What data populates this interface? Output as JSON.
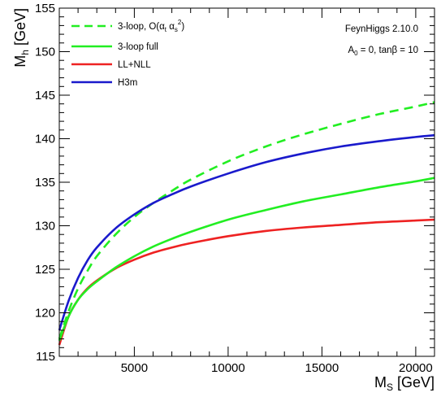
{
  "chart_data": {
    "type": "line",
    "xlabel_main": "M",
    "xlabel_sub": "S",
    "xlabel_unit": " [GeV]",
    "ylabel_main": "M",
    "ylabel_sub": "h",
    "ylabel_unit": " [GeV]",
    "xlim": [
      1000,
      21000
    ],
    "ylim": [
      115,
      155
    ],
    "x_ticks": [
      5000,
      10000,
      15000,
      20000
    ],
    "x_tick_labels": [
      "5000",
      "10000",
      "15000",
      "20000"
    ],
    "y_ticks": [
      115,
      120,
      125,
      130,
      135,
      140,
      145,
      150,
      155
    ],
    "y_tick_labels": [
      "115",
      "120",
      "125",
      "130",
      "135",
      "140",
      "145",
      "150",
      "155"
    ],
    "grid": false,
    "legend_position": "top-left",
    "annotations": {
      "line1": "FeynHiggs 2.10.0",
      "line2_a": "A",
      "line2_sub": "0",
      "line2_b": " = 0, tanβ = 10"
    },
    "series": [
      {
        "name": "3-loop, O(α_t α_s^2)",
        "legend_parts": {
          "pre": "3-loop, O(α",
          "sub1": "t",
          "mid": " α",
          "sub2": "s",
          "sup": "2",
          "post": ")"
        },
        "color": "#22ee22",
        "dash": true,
        "x": [
          1000,
          1500,
          2000,
          2500,
          3000,
          4000,
          5000,
          6000,
          7000,
          8000,
          10000,
          12000,
          14000,
          16000,
          18000,
          20000,
          21000
        ],
        "y": [
          117.0,
          120.2,
          122.8,
          124.8,
          126.5,
          129.0,
          131.0,
          132.6,
          134.0,
          135.3,
          137.4,
          139.1,
          140.5,
          141.7,
          142.8,
          143.7,
          144.2
        ]
      },
      {
        "name": "3-loop full",
        "color": "#22ee22",
        "dash": false,
        "x": [
          1000,
          1500,
          2000,
          2500,
          3000,
          4000,
          5000,
          6000,
          7000,
          8000,
          10000,
          12000,
          14000,
          16000,
          18000,
          20000,
          21000
        ],
        "y": [
          116.8,
          119.6,
          121.5,
          122.7,
          123.6,
          125.2,
          126.5,
          127.6,
          128.5,
          129.3,
          130.7,
          131.8,
          132.8,
          133.6,
          134.4,
          135.1,
          135.5
        ]
      },
      {
        "name": "LL+NLL",
        "color": "#ee2222",
        "dash": false,
        "x": [
          1000,
          1500,
          2000,
          2500,
          3000,
          4000,
          5000,
          6000,
          7000,
          8000,
          10000,
          12000,
          14000,
          16000,
          18000,
          20000,
          21000
        ],
        "y": [
          116.3,
          119.6,
          121.5,
          122.8,
          123.7,
          125.1,
          126.1,
          126.9,
          127.5,
          128.0,
          128.8,
          129.4,
          129.8,
          130.1,
          130.4,
          130.6,
          130.7
        ]
      },
      {
        "name": "H3m",
        "color": "#1a1acc",
        "dash": false,
        "x": [
          1000,
          1500,
          2000,
          2500,
          3000,
          4000,
          5000,
          6000,
          7000,
          8000,
          10000,
          12000,
          14000,
          16000,
          18000,
          20000,
          21000
        ],
        "y": [
          118.0,
          121.4,
          124.0,
          126.0,
          127.5,
          129.7,
          131.3,
          132.6,
          133.6,
          134.5,
          136.0,
          137.3,
          138.3,
          139.1,
          139.7,
          140.2,
          140.4
        ]
      }
    ]
  }
}
